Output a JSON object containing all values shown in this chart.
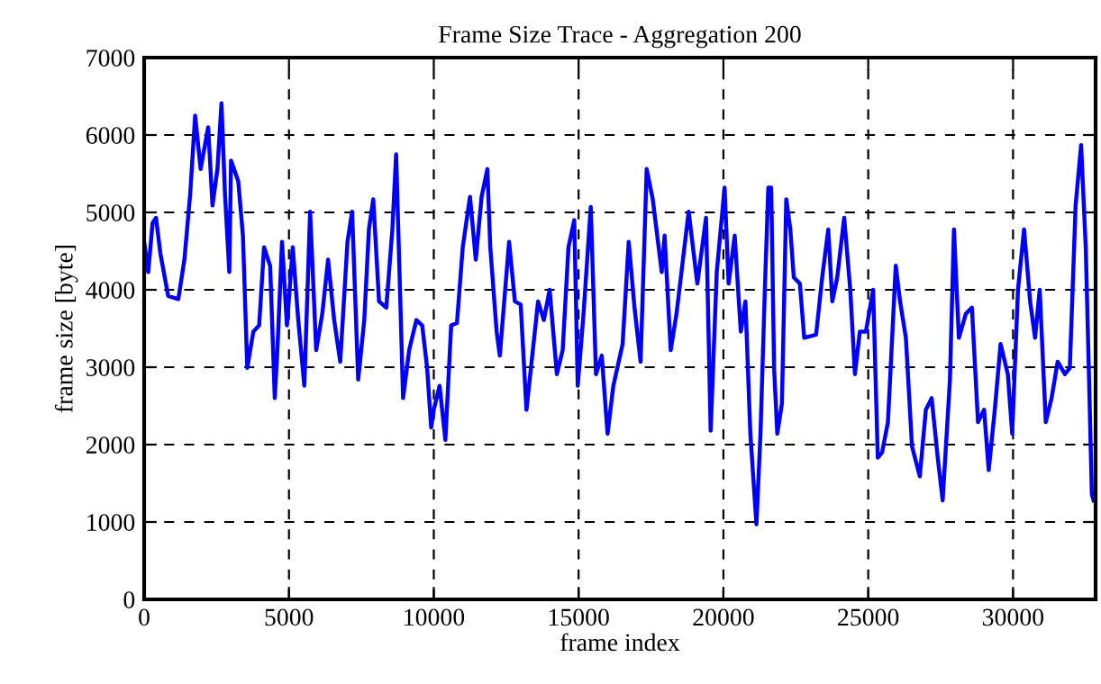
{
  "chart_data": {
    "type": "line",
    "title": "Frame Size Trace - Aggregation 200",
    "xlabel": "frame index",
    "ylabel": "frame size [byte]",
    "series": [
      {
        "color": "#0000ff",
        "x": [
          0,
          140,
          290,
          410,
          560,
          830,
          1180,
          1390,
          1590,
          1760,
          1950,
          2210,
          2360,
          2530,
          2670,
          2790,
          2940,
          3000,
          3250,
          3410,
          3560,
          3770,
          3970,
          4140,
          4350,
          4510,
          4600,
          4760,
          4930,
          5130,
          5320,
          5530,
          5730,
          5940,
          6150,
          6350,
          6560,
          6770,
          7020,
          7180,
          7390,
          7600,
          7760,
          7910,
          8110,
          8360,
          8570,
          8700,
          8940,
          9150,
          9400,
          9600,
          9770,
          9910,
          10000,
          10200,
          10400,
          10600,
          10800,
          11000,
          11250,
          11450,
          11650,
          11850,
          11950,
          12170,
          12280,
          12600,
          12800,
          13000,
          13200,
          13600,
          13800,
          14000,
          14250,
          14450,
          14650,
          14850,
          14970,
          15170,
          15420,
          15600,
          15800,
          16000,
          16200,
          16520,
          16730,
          16930,
          17140,
          17350,
          17560,
          17870,
          17970,
          18180,
          18380,
          18800,
          19100,
          19400,
          19560,
          19770,
          20040,
          20180,
          20390,
          20600,
          20760,
          20930,
          21140,
          21280,
          21430,
          21550,
          21650,
          21750,
          21860,
          22020,
          22170,
          22310,
          22430,
          22640,
          22790,
          23200,
          23410,
          23620,
          23760,
          23930,
          24170,
          24380,
          24540,
          24710,
          24920,
          25170,
          25330,
          25480,
          25680,
          25950,
          26100,
          26300,
          26510,
          26780,
          26990,
          27190,
          27400,
          27570,
          27820,
          27960,
          28130,
          28370,
          28580,
          28790,
          29000,
          29160,
          29370,
          29570,
          29820,
          29970,
          30170,
          30380,
          30590,
          30760,
          30920,
          31130,
          31330,
          31540,
          31790,
          31960,
          32160,
          32350,
          32510,
          32620,
          32720,
          32780
        ],
        "values": [
          4620,
          4230,
          4860,
          4930,
          4470,
          3920,
          3880,
          4390,
          5240,
          6250,
          5560,
          6100,
          5090,
          5560,
          6410,
          5240,
          4230,
          5670,
          5400,
          4700,
          2990,
          3460,
          3540,
          4550,
          4310,
          2600,
          3220,
          4620,
          3540,
          4550,
          3610,
          2760,
          5010,
          3220,
          3690,
          4390,
          3610,
          3070,
          4620,
          5010,
          2840,
          3610,
          4780,
          5170,
          3850,
          3770,
          4780,
          5750,
          2600,
          3220,
          3610,
          3540,
          2990,
          2220,
          2450,
          2760,
          2060,
          3540,
          3570,
          4550,
          5200,
          4390,
          5200,
          5560,
          4550,
          3460,
          3150,
          4620,
          3850,
          3810,
          2450,
          3850,
          3610,
          4000,
          2910,
          3220,
          4550,
          4900,
          2760,
          3690,
          5070,
          2910,
          3150,
          2140,
          2760,
          3300,
          4620,
          3770,
          3070,
          5560,
          5170,
          4230,
          4700,
          3220,
          3690,
          5010,
          4080,
          4930,
          2180,
          4230,
          5320,
          4080,
          4700,
          3460,
          3850,
          2140,
          970,
          2140,
          4000,
          5320,
          5320,
          2990,
          2140,
          2530,
          5170,
          4780,
          4160,
          4080,
          3380,
          3420,
          4160,
          4780,
          3850,
          4160,
          4930,
          4000,
          2910,
          3460,
          3460,
          4000,
          1830,
          1900,
          2290,
          4310,
          3850,
          3380,
          1980,
          1590,
          2450,
          2600,
          1830,
          1280,
          2830,
          4780,
          3380,
          3690,
          3770,
          2290,
          2450,
          1670,
          2450,
          3300,
          2910,
          2140,
          4000,
          4780,
          3850,
          3380,
          4000,
          2290,
          2600,
          3070,
          2910,
          2990,
          5090,
          5870,
          4550,
          2910,
          1360,
          1280
        ]
      }
    ],
    "xlim": [
      0,
      32850
    ],
    "ylim": [
      0,
      7000
    ],
    "xticks": [
      0,
      5000,
      10000,
      15000,
      20000,
      25000,
      30000
    ],
    "yticks": [
      0,
      1000,
      2000,
      3000,
      4000,
      5000,
      6000,
      7000
    ],
    "grid": true,
    "line_style": "solid",
    "marker": "none",
    "legend": false
  }
}
